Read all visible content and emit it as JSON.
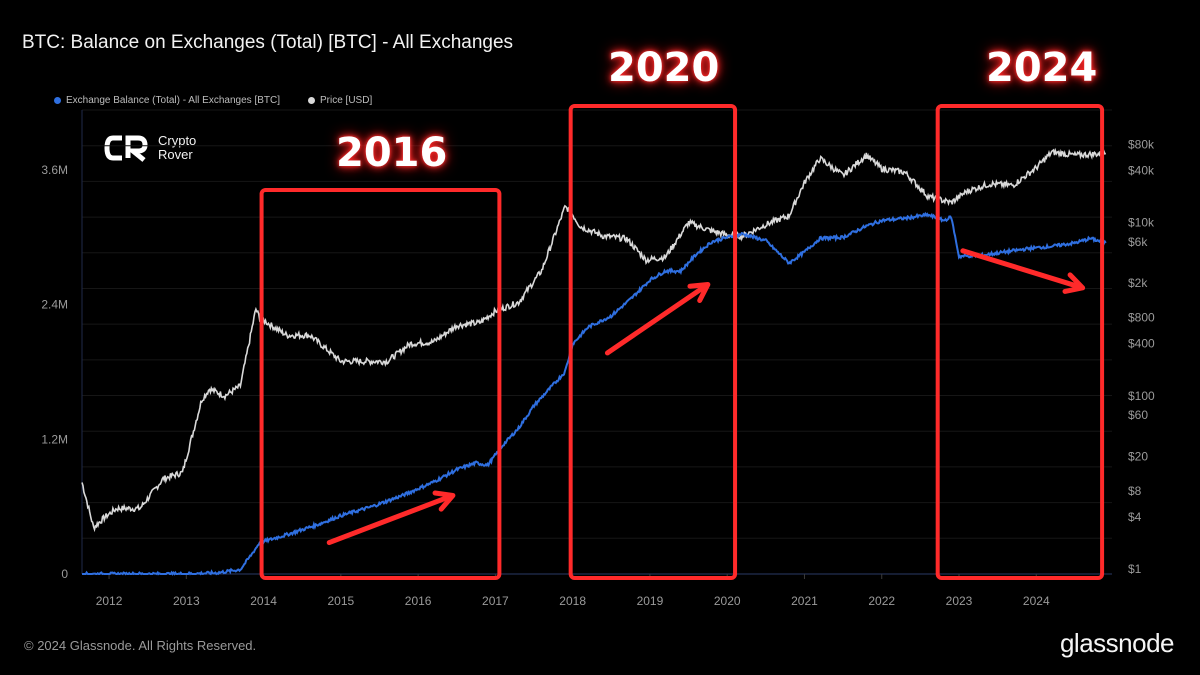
{
  "header": {
    "title": "BTC: Balance on Exchanges (Total) [BTC] - All Exchanges"
  },
  "legend": [
    {
      "label": "Exchange Balance (Total) - All Exchanges [BTC]",
      "color": "#2f6fe0"
    },
    {
      "label": "Price [USD]",
      "color": "#d9d9d9"
    }
  ],
  "branding": {
    "logo_line1": "Crypto",
    "logo_line2": "Rover",
    "logo_mark": "CR",
    "footer": "© 2024 Glassnode. All Rights Reserved.",
    "brand": "glassnode"
  },
  "annotations": {
    "labels": [
      "2016",
      "2020",
      "2024"
    ],
    "box_color": "#ff2a2a",
    "boxes": [
      {
        "x_start": 2014.0,
        "x_end": 2017.0
      },
      {
        "x_start": 2018.0,
        "x_end": 2020.05
      },
      {
        "x_start": 2022.75,
        "x_end": 2024.8
      }
    ],
    "arrows": [
      {
        "from": [
          2014.85,
          280000
        ],
        "to": [
          2016.45,
          700000
        ]
      },
      {
        "from": [
          2018.45,
          1970000
        ],
        "to": [
          2019.75,
          2580000
        ]
      },
      {
        "from": [
          2023.05,
          2880000
        ],
        "to": [
          2024.6,
          2550000
        ]
      }
    ]
  },
  "chart_data": {
    "type": "line",
    "title": "BTC: Balance on Exchanges (Total) [BTC] - All Exchanges",
    "x_ticks": [
      "2012",
      "2013",
      "2014",
      "2015",
      "2016",
      "2017",
      "2018",
      "2019",
      "2020",
      "2021",
      "2022",
      "2023",
      "2024"
    ],
    "x_range": [
      2011.65,
      2024.98
    ],
    "y_left": {
      "ticks": [
        "0",
        "1.2M",
        "2.4M",
        "3.6M"
      ],
      "range": [
        0,
        3600000
      ]
    },
    "y_right": {
      "scale": "log",
      "ticks": [
        "$1",
        "$4",
        "$8",
        "$20",
        "$60",
        "$100",
        "$400",
        "$800",
        "$2k",
        "$6k",
        "$10k",
        "$40k",
        "$80k"
      ],
      "range": [
        1,
        100000
      ]
    },
    "grid": true,
    "series": [
      {
        "name": "Exchange Balance (Total) - All Exchanges [BTC]",
        "axis": "left",
        "color": "#2f6fe0",
        "x": [
          2011.65,
          2012.5,
          2013.0,
          2013.4,
          2013.7,
          2013.85,
          2013.95,
          2014.3,
          2014.7,
          2015.0,
          2015.4,
          2015.8,
          2016.2,
          2016.5,
          2016.75,
          2016.9,
          2017.1,
          2017.3,
          2017.5,
          2017.7,
          2017.9,
          2018.0,
          2018.2,
          2018.5,
          2018.75,
          2019.0,
          2019.2,
          2019.4,
          2019.6,
          2019.8,
          2020.0,
          2020.2,
          2020.5,
          2020.8,
          2021.0,
          2021.2,
          2021.5,
          2021.8,
          2022.0,
          2022.3,
          2022.6,
          2022.8,
          2022.9,
          2023.0,
          2023.3,
          2023.6,
          2023.9,
          2024.2,
          2024.5,
          2024.7,
          2024.9
        ],
        "y": [
          0,
          0,
          0,
          10000,
          40000,
          180000,
          280000,
          350000,
          440000,
          520000,
          600000,
          700000,
          820000,
          930000,
          990000,
          970000,
          1150000,
          1300000,
          1500000,
          1650000,
          1800000,
          2050000,
          2200000,
          2300000,
          2450000,
          2620000,
          2700000,
          2700000,
          2850000,
          2960000,
          3000000,
          3030000,
          2970000,
          2770000,
          2870000,
          2990000,
          3000000,
          3100000,
          3150000,
          3170000,
          3200000,
          3150000,
          3180000,
          2830000,
          2840000,
          2870000,
          2900000,
          2920000,
          2950000,
          2990000,
          2950000
        ]
      },
      {
        "name": "Price [USD]",
        "axis": "right",
        "color": "#d9d9d9",
        "x": [
          2011.65,
          2011.8,
          2011.95,
          2012.1,
          2012.4,
          2012.7,
          2012.95,
          2013.2,
          2013.3,
          2013.5,
          2013.7,
          2013.9,
          2013.95,
          2014.1,
          2014.3,
          2014.6,
          2015.0,
          2015.2,
          2015.6,
          2015.9,
          2016.2,
          2016.5,
          2016.8,
          2017.0,
          2017.3,
          2017.6,
          2017.9,
          2017.96,
          2018.1,
          2018.4,
          2018.7,
          2018.95,
          2019.2,
          2019.5,
          2019.8,
          2020.0,
          2020.2,
          2020.5,
          2020.8,
          2021.0,
          2021.2,
          2021.5,
          2021.8,
          2022.0,
          2022.3,
          2022.6,
          2022.9,
          2023.1,
          2023.4,
          2023.7,
          2024.0,
          2024.2,
          2024.5,
          2024.9
        ],
        "y": [
          10,
          3,
          4,
          5,
          5,
          11,
          13,
          90,
          120,
          100,
          130,
          1000,
          800,
          650,
          500,
          500,
          250,
          250,
          250,
          400,
          420,
          650,
          700,
          950,
          1200,
          2800,
          15000,
          14000,
          9000,
          7000,
          6500,
          3700,
          4000,
          10000,
          8000,
          7200,
          7000,
          9500,
          12000,
          29000,
          55000,
          35000,
          60000,
          42000,
          38000,
          20000,
          17000,
          23000,
          28000,
          27000,
          43000,
          65000,
          60000,
          63000
        ]
      }
    ]
  }
}
